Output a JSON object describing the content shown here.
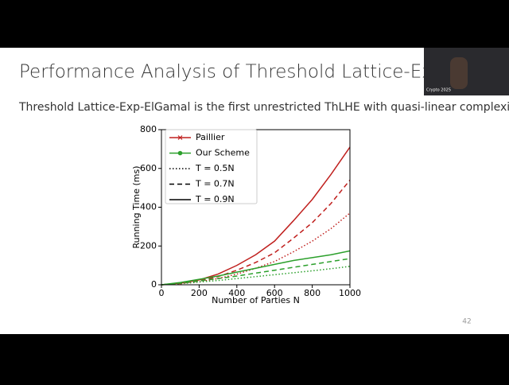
{
  "slide": {
    "title": "Performance Analysis of Threshold Lattice-Exp-ElG",
    "subtitle": "Threshold Lattice-Exp-ElGamal is the first unrestricted ThLHE with quasi-linear complexity",
    "page_number": "42",
    "webcam_caption": "Crypto 2025"
  },
  "chart_data": {
    "type": "line",
    "x_label": "Number of Parties N",
    "y_label": "Running Time (ms)",
    "x": [
      0,
      100,
      200,
      300,
      400,
      500,
      600,
      700,
      800,
      900,
      1000
    ],
    "xlim": [
      0,
      1000
    ],
    "xticks": [
      0,
      200,
      400,
      600,
      800,
      1000
    ],
    "ylim": [
      0,
      800
    ],
    "yticks": [
      0,
      200,
      400,
      600,
      800
    ],
    "legend": [
      {
        "label": "Paillier",
        "color": "#c0201e",
        "style": "solid",
        "marker": "x"
      },
      {
        "label": "Our Scheme",
        "color": "#2ca02c",
        "style": "solid",
        "marker": "o"
      },
      {
        "label": "T = 0.5N",
        "color": "#000000",
        "style": "dotted"
      },
      {
        "label": "T = 0.7N",
        "color": "#000000",
        "style": "dashed"
      },
      {
        "label": "T = 0.9N",
        "color": "#000000",
        "style": "solid"
      }
    ],
    "series": [
      {
        "color": "#c0201e",
        "style": "solid",
        "values": [
          0,
          8,
          25,
          55,
          100,
          155,
          225,
          330,
          440,
          570,
          710
        ]
      },
      {
        "color": "#c0201e",
        "style": "dashed",
        "values": [
          0,
          6,
          20,
          42,
          75,
          115,
          165,
          240,
          320,
          420,
          540
        ]
      },
      {
        "color": "#c0201e",
        "style": "dotted",
        "values": [
          0,
          5,
          15,
          32,
          55,
          85,
          120,
          170,
          225,
          290,
          370
        ]
      },
      {
        "color": "#2ca02c",
        "style": "solid",
        "values": [
          0,
          12,
          28,
          45,
          65,
          85,
          105,
          125,
          140,
          155,
          175
        ]
      },
      {
        "color": "#2ca02c",
        "style": "dashed",
        "values": [
          0,
          9,
          20,
          32,
          45,
          60,
          75,
          90,
          105,
          120,
          135
        ]
      },
      {
        "color": "#2ca02c",
        "style": "dotted",
        "values": [
          0,
          6,
          14,
          22,
          32,
          42,
          52,
          62,
          72,
          83,
          95
        ]
      }
    ]
  }
}
